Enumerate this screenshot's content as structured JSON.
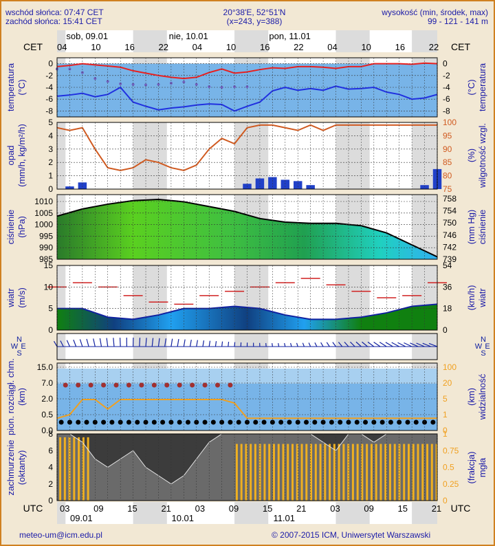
{
  "header": {
    "sunrise": "wschód słońca: 07:47 CET",
    "sunset": "zachód słońca: 15:41 CET",
    "coords": "20°38'E, 52°51'N",
    "grid": "(x=243, y=388)",
    "elevation_label": "wysokość (min, środek, max)",
    "elevation_values": "99 - 121 - 141 m"
  },
  "top_axis": {
    "zone": "CET",
    "hours": [
      "04",
      "10",
      "16",
      "22",
      "04",
      "10",
      "16",
      "22",
      "04",
      "10",
      "16",
      "22"
    ],
    "days": [
      "sob, 09.01",
      "nie, 10.01",
      "pon, 11.01"
    ]
  },
  "bottom_axis": {
    "zone": "UTC",
    "hours": [
      "03",
      "09",
      "15",
      "21",
      "03",
      "09",
      "15",
      "21",
      "03",
      "09",
      "15",
      "21"
    ],
    "days": [
      "09.01",
      "10.01",
      "11.01"
    ]
  },
  "panels": {
    "temperature": {
      "left_label": [
        "temperatura",
        "(°C)"
      ],
      "right_label": [
        "(°C)",
        "temperatura"
      ],
      "ticks": [
        "0",
        "-2",
        "-4",
        "-6",
        "-8"
      ]
    },
    "precip": {
      "left_label": [
        "opad",
        "(mm/h, kg/m²/h)"
      ],
      "right_label": [
        "(%)",
        "wilgotność wzgl."
      ],
      "left_ticks": [
        "5",
        "4",
        "3",
        "2",
        "1",
        "0"
      ],
      "right_ticks": [
        "100",
        "95",
        "90",
        "85",
        "80",
        "75"
      ]
    },
    "pressure": {
      "left_label": [
        "ciśnienie",
        "(hPa)"
      ],
      "right_label": [
        "(mm Hg)",
        "ciśnienie"
      ],
      "left_ticks": [
        "1010",
        "1005",
        "1000",
        "995",
        "990",
        "985"
      ],
      "right_ticks": [
        "758",
        "754",
        "750",
        "746",
        "742",
        "739"
      ]
    },
    "wind": {
      "left_label": [
        "wiatr",
        "(m/s)"
      ],
      "right_label": [
        "(km/h)",
        "wiatr"
      ],
      "left_ticks": [
        "15",
        "10",
        "5",
        "0"
      ],
      "right_ticks": [
        "54",
        "36",
        "18",
        "0"
      ]
    },
    "wind_dir": {
      "compass": [
        "N",
        "E",
        "S",
        "W"
      ]
    },
    "visibility": {
      "left_label": [
        "pion. rozciągł. chm.",
        "(km)"
      ],
      "right_label": [
        "(km)",
        "widzialność"
      ],
      "left_ticks": [
        "15.0",
        "7.0",
        "2.0",
        "0.5",
        "0.0"
      ],
      "right_ticks": [
        "100",
        "20",
        "5",
        "1",
        "0"
      ]
    },
    "clouds": {
      "left_label": [
        "zachmurzenie",
        "(oktanty)"
      ],
      "right_label": [
        "(frakcja)",
        "mgła"
      ],
      "left_ticks": [
        "8",
        "6",
        "4",
        "2",
        "0"
      ],
      "right_ticks": [
        "1",
        "0.75",
        "0.5",
        "0.25",
        "0"
      ]
    }
  },
  "footer": {
    "email": "meteo-um@icm.edu.pl",
    "copyright": "© 2007-2015 ICM, Uniwersytet Warszawski"
  },
  "colors": {
    "bg": "#f2e8d4",
    "text": "#1a1aa8",
    "panel_blue": "#78b4e8",
    "panel_blue_light": "#a8d0f0",
    "temp_red": "#e82020",
    "temp_blue": "#2030e0",
    "humidity": "#d05a20",
    "precip_bar": "#2040c8",
    "vis_orange": "#f0a020",
    "cloud_dark": "#3c3c3c",
    "fog_bar": "#f0b020"
  },
  "chart_data": [
    {
      "type": "line",
      "title": "temperatura",
      "x": [
        0,
        6,
        12,
        18,
        24,
        30,
        36,
        42,
        48,
        54,
        60,
        66,
        72,
        78,
        84,
        90,
        96,
        102,
        108,
        114,
        120,
        126,
        132,
        138,
        144,
        150,
        156,
        162,
        168,
        174,
        180
      ],
      "series": [
        {
          "name": "temperatura",
          "values": [
            -0.5,
            -0.3,
            0,
            -0.2,
            -0.4,
            -0.6,
            -1.2,
            -1.6,
            -2.0,
            -2.3,
            -2.5,
            -2.3,
            -1.5,
            -0.9,
            -1.6,
            -1.4,
            -1.0,
            -0.7,
            -0.8,
            -0.5,
            -0.5,
            -0.6,
            -0.8,
            -0.5,
            -0.5,
            0,
            0,
            0,
            -0.1,
            0.1,
            0
          ]
        },
        {
          "values": [
            -5.5,
            -5.3,
            -5.0,
            -5.6,
            -5.2,
            -4.0,
            -6.5,
            -7.2,
            -7.8,
            -7.5,
            -7.3,
            -7.0,
            -6.8,
            -6.9,
            -8.0,
            -7.2,
            -6.5,
            -4.6,
            -4.0,
            -4.5,
            -4.2,
            -4.5,
            -3.8,
            -4.3,
            -4.2,
            -4.0,
            -4.8,
            -5.2,
            -6.0,
            -5.8,
            -5.2
          ]
        },
        {
          "values": [
            -0.9,
            -0.9,
            -1.5,
            -2.5,
            -3.0,
            -3.4,
            -3.5,
            -3.6,
            -3.5,
            -3.3,
            -3.1,
            -3.5,
            -3.9,
            -4.0,
            -3.9,
            -3.9,
            null,
            null,
            null,
            null,
            null,
            null,
            null,
            null,
            null,
            null,
            null,
            null,
            null,
            null,
            null
          ]
        }
      ],
      "ylim": [
        -9,
        1
      ]
    },
    {
      "type": "bar",
      "title": "opad",
      "x": [
        0,
        6,
        12,
        18,
        24,
        30,
        36,
        42,
        48,
        54,
        60,
        66,
        72,
        78,
        84,
        90,
        96,
        102,
        108,
        114,
        120,
        126,
        132,
        138,
        144,
        150,
        156,
        162,
        168,
        174,
        180
      ],
      "series": [
        {
          "values": [
            0,
            0.2,
            0.5,
            0,
            0,
            0,
            0,
            0,
            0,
            0,
            0,
            0,
            0,
            0,
            0,
            0.4,
            0.8,
            0.9,
            0.7,
            0.6,
            0.3,
            0,
            0,
            0,
            0,
            0,
            0,
            0,
            0,
            0.3,
            1.5
          ]
        },
        {
          "values": [
            98,
            97,
            98,
            90,
            83,
            82,
            83,
            86,
            85,
            83,
            82,
            84,
            90,
            94,
            92,
            98,
            99,
            99,
            98,
            97,
            99,
            97,
            99,
            99,
            99,
            99,
            99,
            99,
            99,
            99,
            99
          ]
        }
      ],
      "ylim": [
        0,
        5
      ]
    },
    {
      "type": "area",
      "title": "ciśnienie",
      "x": [
        0,
        12,
        24,
        36,
        48,
        60,
        72,
        84,
        96,
        108,
        120,
        132,
        144,
        156,
        168,
        180
      ],
      "values": [
        1003,
        1006,
        1008,
        1009.5,
        1010,
        1009,
        1007,
        1005,
        1002,
        1000.5,
        1000,
        1000,
        999,
        996,
        991,
        986
      ],
      "ylim": [
        985,
        1012
      ]
    },
    {
      "type": "line",
      "title": "wiatr",
      "x": [
        0,
        12,
        24,
        36,
        48,
        60,
        72,
        84,
        96,
        108,
        120,
        132,
        144,
        156,
        168,
        180
      ],
      "series": [
        {
          "values": [
            5,
            5,
            3,
            2.5,
            3.5,
            5,
            5,
            5.5,
            5,
            3.5,
            2.5,
            2.5,
            3,
            4,
            5.5,
            6
          ]
        },
        {
          "values": [
            10,
            11,
            10,
            8,
            6.5,
            6,
            8,
            9,
            10,
            11,
            12,
            10.5,
            9,
            7.5,
            8,
            11
          ]
        }
      ],
      "ylim": [
        0,
        15
      ]
    },
    {
      "type": "line",
      "title": "widzialność",
      "x": [
        0,
        6,
        12,
        18,
        24,
        30,
        36,
        42,
        48,
        54,
        60,
        66,
        72,
        78,
        84,
        90,
        96,
        102,
        108,
        114,
        120,
        126,
        132,
        138,
        144,
        150,
        156,
        162,
        168,
        174,
        180
      ],
      "values": [
        0.3,
        0.5,
        3,
        3,
        1,
        3,
        3,
        3,
        3,
        3,
        3,
        3,
        3,
        3,
        2,
        0.3,
        0.3,
        0.3,
        0.3,
        0.3,
        0.3,
        0.3,
        0.3,
        0.3,
        0.3,
        0.3,
        0.3,
        0.3,
        0.3,
        0.3,
        0.3
      ],
      "ylim": [
        0,
        100
      ]
    },
    {
      "type": "area",
      "title": "zachmurzenie",
      "x": [
        0,
        6,
        12,
        18,
        24,
        30,
        36,
        42,
        48,
        54,
        60,
        66,
        72,
        78,
        84,
        90,
        96,
        102,
        108,
        114,
        120,
        126,
        132,
        138,
        144,
        150,
        156,
        162,
        168,
        174,
        180
      ],
      "values": [
        8,
        8,
        7,
        5,
        4,
        5,
        6,
        4,
        3,
        2,
        3,
        5,
        7,
        8,
        8,
        8,
        8,
        8,
        8,
        8,
        8,
        7,
        6,
        8,
        8,
        7,
        8,
        8,
        8,
        8,
        8
      ],
      "ylim": [
        0,
        8
      ]
    }
  ]
}
